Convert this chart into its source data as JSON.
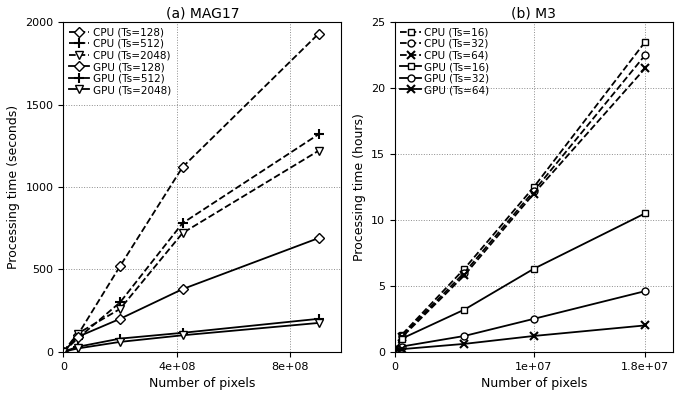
{
  "mag17": {
    "title": "(a) MAG17",
    "xlabel": "Number of pixels",
    "ylabel": "Processing time (seconds)",
    "ylim": [
      0,
      2000
    ],
    "xlim": [
      0,
      980000000.0
    ],
    "yticks": [
      0,
      500,
      1000,
      1500,
      2000
    ],
    "xticks": [
      0,
      400000000.0,
      800000000.0
    ],
    "xtick_labels": [
      "0",
      "4e+08",
      "8e+08"
    ],
    "series": [
      {
        "label": "CPU (Ts=128)",
        "marker": "D",
        "linestyle": "--",
        "x": [
          0,
          50000000.0,
          200000000.0,
          420000000.0,
          900000000.0
        ],
        "y": [
          0,
          100,
          520,
          1120,
          1930
        ]
      },
      {
        "label": "CPU (Ts=512)",
        "marker": "+",
        "linestyle": "--",
        "x": [
          0,
          50000000.0,
          200000000.0,
          420000000.0,
          900000000.0
        ],
        "y": [
          0,
          80,
          300,
          780,
          1320
        ]
      },
      {
        "label": "CPU (Ts=2048)",
        "marker": "v",
        "linestyle": "--",
        "x": [
          0,
          50000000.0,
          200000000.0,
          420000000.0,
          900000000.0
        ],
        "y": [
          0,
          110,
          260,
          720,
          1220
        ]
      },
      {
        "label": "GPU (Ts=128)",
        "marker": "D",
        "linestyle": "-",
        "x": [
          0,
          50000000.0,
          200000000.0,
          420000000.0,
          900000000.0
        ],
        "y": [
          0,
          90,
          200,
          380,
          690
        ]
      },
      {
        "label": "GPU (Ts=512)",
        "marker": "+",
        "linestyle": "-",
        "x": [
          0,
          50000000.0,
          200000000.0,
          420000000.0,
          900000000.0
        ],
        "y": [
          0,
          30,
          80,
          115,
          200
        ]
      },
      {
        "label": "GPU (Ts=2048)",
        "marker": "v",
        "linestyle": "-",
        "x": [
          0,
          50000000.0,
          200000000.0,
          420000000.0,
          900000000.0
        ],
        "y": [
          0,
          20,
          60,
          100,
          175
        ]
      }
    ]
  },
  "m3": {
    "title": "(b) M3",
    "xlabel": "Number of pixels",
    "ylabel": "Processing time (hours)",
    "ylim": [
      0,
      25
    ],
    "xlim": [
      0,
      20000000.0
    ],
    "yticks": [
      0,
      5,
      10,
      15,
      20,
      25
    ],
    "xticks": [
      0,
      10000000.0,
      18000000.0
    ],
    "xtick_labels": [
      "0",
      "1e+07",
      "1.8e+07"
    ],
    "series": [
      {
        "label": "CPU (Ts=16)",
        "marker": "s",
        "linestyle": "--",
        "x": [
          0,
          500000.0,
          5000000.0,
          10000000.0,
          18000000.0
        ],
        "y": [
          0,
          1.3,
          6.3,
          12.5,
          23.5
        ]
      },
      {
        "label": "CPU (Ts=32)",
        "marker": "o",
        "linestyle": "--",
        "x": [
          0,
          500000.0,
          5000000.0,
          10000000.0,
          18000000.0
        ],
        "y": [
          0,
          1.2,
          6.0,
          12.2,
          22.5
        ]
      },
      {
        "label": "CPU (Ts=64)",
        "marker": "x",
        "linestyle": "--",
        "x": [
          0,
          500000.0,
          5000000.0,
          10000000.0,
          18000000.0
        ],
        "y": [
          0,
          1.1,
          5.8,
          12.0,
          21.5
        ]
      },
      {
        "label": "GPU (Ts=16)",
        "marker": "s",
        "linestyle": "-",
        "x": [
          0,
          500000.0,
          5000000.0,
          10000000.0,
          18000000.0
        ],
        "y": [
          0,
          1.0,
          3.2,
          6.3,
          10.5
        ]
      },
      {
        "label": "GPU (Ts=32)",
        "marker": "o",
        "linestyle": "-",
        "x": [
          0,
          500000.0,
          5000000.0,
          10000000.0,
          18000000.0
        ],
        "y": [
          0,
          0.4,
          1.2,
          2.5,
          4.6
        ]
      },
      {
        "label": "GPU (Ts=64)",
        "marker": "x",
        "linestyle": "-",
        "x": [
          0,
          500000.0,
          5000000.0,
          10000000.0,
          18000000.0
        ],
        "y": [
          0,
          0.2,
          0.6,
          1.2,
          2.0
        ]
      }
    ]
  },
  "bg_color": "#ffffff",
  "line_color": "black",
  "font_size": 9,
  "tick_font_size": 8,
  "legend_fontsize": 7.5
}
